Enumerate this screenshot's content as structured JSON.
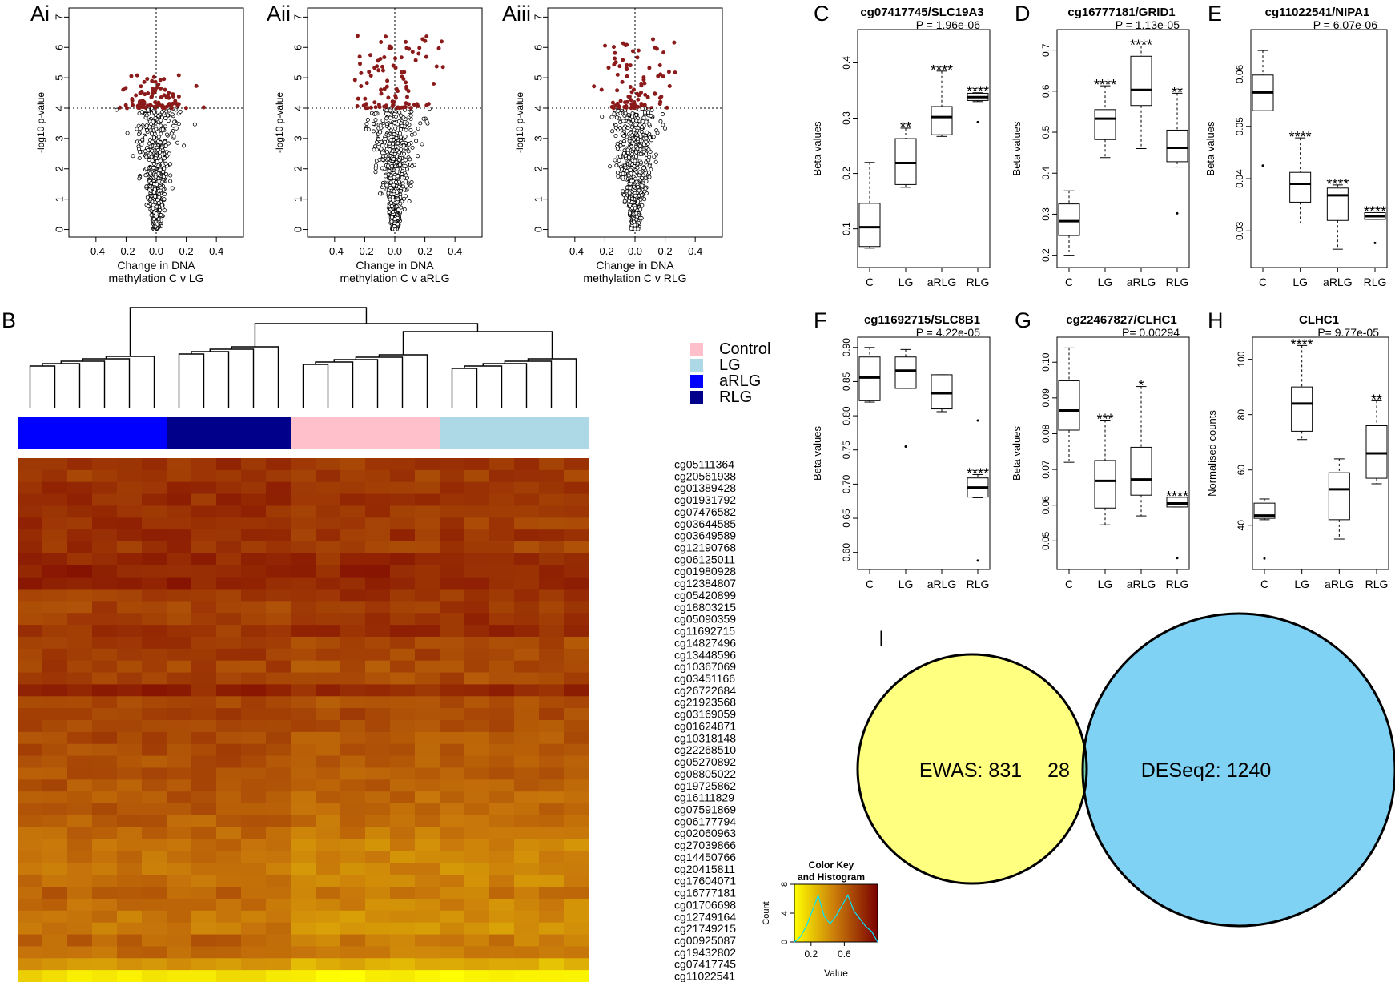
{
  "figure": {
    "panel_letters": {
      "ai": "Ai",
      "aii": "Aii",
      "aiii": "Aiii",
      "b": "B",
      "c": "C",
      "d": "D",
      "e": "E",
      "f": "F",
      "g": "G",
      "h": "H",
      "i": "I"
    }
  },
  "chart_data": [
    {
      "id": "ai",
      "type": "scatter",
      "title": "",
      "xlabel_line1": "Change in DNA",
      "xlabel_line2": "methylation C v LG",
      "ylabel": "-log10 p-value",
      "xlim": [
        -0.58,
        0.58
      ],
      "ylim": [
        -0.25,
        7.3
      ],
      "xticks": [
        -0.4,
        -0.2,
        0.0,
        0.2,
        0.4
      ],
      "xtick_labels": [
        "-0.4",
        "-0.2",
        "0.0",
        "0.2",
        "0.4"
      ],
      "yticks": [
        0,
        1,
        2,
        3,
        4,
        5,
        6,
        7
      ],
      "threshold": 4,
      "max_sig": 5.1,
      "spread": 0.19,
      "n_points": 700,
      "seed": 11,
      "series": [
        {
          "name": "significant",
          "color": "#8b1a1a"
        },
        {
          "name": "not significant",
          "color": "#000000"
        }
      ]
    },
    {
      "id": "aii",
      "type": "scatter",
      "title": "",
      "xlabel_line1": "Change in DNA",
      "xlabel_line2": "methylation C v aRLG",
      "ylabel": "-log10 p-value",
      "xlim": [
        -0.58,
        0.58
      ],
      "ylim": [
        -0.25,
        7.3
      ],
      "xticks": [
        -0.4,
        -0.2,
        0.0,
        0.2,
        0.4
      ],
      "xtick_labels": [
        "-0.4",
        "-0.2",
        "0.0",
        "0.2",
        "0.4"
      ],
      "yticks": [
        0,
        1,
        2,
        3,
        4,
        5,
        6,
        7
      ],
      "threshold": 4,
      "max_sig": 6.4,
      "spread": 0.25,
      "n_points": 750,
      "seed": 23,
      "series": [
        {
          "name": "significant",
          "color": "#8b1a1a"
        },
        {
          "name": "not significant",
          "color": "#000000"
        }
      ]
    },
    {
      "id": "aiii",
      "type": "scatter",
      "title": "",
      "xlabel_line1": "Change in DNA",
      "xlabel_line2": "methylation C v RLG",
      "ylabel": "-log10 p-value",
      "xlim": [
        -0.58,
        0.58
      ],
      "ylim": [
        -0.25,
        7.3
      ],
      "xticks": [
        -0.4,
        -0.2,
        0.0,
        0.2,
        0.4
      ],
      "xtick_labels": [
        "-0.4",
        "-0.2",
        "0.0",
        "0.2",
        "0.4"
      ],
      "yticks": [
        0,
        1,
        2,
        3,
        4,
        5,
        6,
        7
      ],
      "threshold": 4,
      "max_sig": 6.3,
      "spread": 0.24,
      "n_points": 730,
      "seed": 37,
      "series": [
        {
          "name": "significant",
          "color": "#8b1a1a"
        },
        {
          "name": "not significant",
          "color": "#000000"
        }
      ]
    },
    {
      "id": "c",
      "type": "box",
      "title": "cg07417745/SLC19A3",
      "pvalue": "P =  1.96e-06",
      "ylabel": "Beta values",
      "categories": [
        "C",
        "LG",
        "aRLG",
        "RLG"
      ],
      "ylim": [
        0.03,
        0.46
      ],
      "yticks": [
        0.1,
        0.2,
        0.3,
        0.4
      ],
      "ytick_labels": [
        "0.1",
        "0.2",
        "0.3",
        "0.4"
      ],
      "boxes": [
        {
          "min": 0.065,
          "q1": 0.068,
          "median": 0.103,
          "q3": 0.146,
          "max": 0.22,
          "outliers": [],
          "sig": ""
        },
        {
          "min": 0.175,
          "q1": 0.18,
          "median": 0.219,
          "q3": 0.263,
          "max": 0.282,
          "outliers": [],
          "sig": "**"
        },
        {
          "min": 0.267,
          "q1": 0.27,
          "median": 0.302,
          "q3": 0.321,
          "max": 0.385,
          "outliers": [],
          "sig": "****"
        },
        {
          "min": 0.33,
          "q1": 0.332,
          "median": 0.338,
          "q3": 0.345,
          "max": 0.346,
          "outliers": [
            0.293
          ],
          "sig": "****"
        }
      ]
    },
    {
      "id": "d",
      "type": "box",
      "title": "cg16777181/GRID1",
      "pvalue": "P =  1.13e-05",
      "ylabel": "Beta values",
      "categories": [
        "C",
        "LG",
        "aRLG",
        "RLG"
      ],
      "ylim": [
        0.17,
        0.75
      ],
      "yticks": [
        0.2,
        0.3,
        0.4,
        0.5,
        0.6,
        0.7
      ],
      "ytick_labels": [
        "0.2",
        "0.3",
        "0.4",
        "0.5",
        "0.6",
        "0.7"
      ],
      "boxes": [
        {
          "min": 0.2,
          "q1": 0.248,
          "median": 0.283,
          "q3": 0.325,
          "max": 0.357,
          "outliers": [],
          "sig": ""
        },
        {
          "min": 0.438,
          "q1": 0.482,
          "median": 0.533,
          "q3": 0.555,
          "max": 0.613,
          "outliers": [],
          "sig": "****"
        },
        {
          "min": 0.46,
          "q1": 0.565,
          "median": 0.603,
          "q3": 0.685,
          "max": 0.71,
          "outliers": [],
          "sig": "****"
        },
        {
          "min": 0.415,
          "q1": 0.428,
          "median": 0.462,
          "q3": 0.505,
          "max": 0.595,
          "outliers": [
            0.302
          ],
          "sig": "**"
        }
      ]
    },
    {
      "id": "e",
      "type": "box",
      "title": "cg11022541/NIPA1",
      "pvalue": "P =  6.07e-06",
      "ylabel": "Beta values",
      "categories": [
        "C",
        "LG",
        "aRLG",
        "RLG"
      ],
      "ylim": [
        0.023,
        0.0685
      ],
      "yticks": [
        0.03,
        0.04,
        0.05,
        0.06
      ],
      "ytick_labels": [
        "0.03",
        "0.04",
        "0.05",
        "0.06"
      ],
      "boxes": [
        {
          "min": 0.053,
          "q1": 0.053,
          "median": 0.0565,
          "q3": 0.0598,
          "max": 0.0645,
          "outliers": [
            0.0425
          ],
          "sig": ""
        },
        {
          "min": 0.0315,
          "q1": 0.0355,
          "median": 0.039,
          "q3": 0.0412,
          "max": 0.0478,
          "outliers": [],
          "sig": "****"
        },
        {
          "min": 0.0265,
          "q1": 0.032,
          "median": 0.0368,
          "q3": 0.0382,
          "max": 0.0388,
          "outliers": [],
          "sig": "****"
        },
        {
          "min": 0.0322,
          "q1": 0.0322,
          "median": 0.0328,
          "q3": 0.0335,
          "max": 0.0335,
          "outliers": [
            0.0277
          ],
          "sig": "****"
        }
      ]
    },
    {
      "id": "f",
      "type": "box",
      "title": "cg11692715/SLC8B1",
      "pvalue": "P =  4.22e-05",
      "ylabel": "Beta values",
      "categories": [
        "C",
        "LG",
        "aRLG",
        "RLG"
      ],
      "ylim": [
        0.575,
        0.915
      ],
      "yticks": [
        0.6,
        0.65,
        0.7,
        0.75,
        0.8,
        0.85,
        0.9
      ],
      "ytick_labels": [
        "0.60",
        "0.65",
        "0.70",
        "0.75",
        "0.80",
        "0.85",
        "0.90"
      ],
      "boxes": [
        {
          "min": 0.82,
          "q1": 0.822,
          "median": 0.856,
          "q3": 0.886,
          "max": 0.9,
          "outliers": [],
          "sig": ""
        },
        {
          "min": 0.84,
          "q1": 0.84,
          "median": 0.866,
          "q3": 0.886,
          "max": 0.897,
          "outliers": [
            0.755
          ],
          "sig": ""
        },
        {
          "min": 0.806,
          "q1": 0.81,
          "median": 0.833,
          "q3": 0.86,
          "max": 0.86,
          "outliers": [],
          "sig": ""
        },
        {
          "min": 0.68,
          "q1": 0.681,
          "median": 0.695,
          "q3": 0.709,
          "max": 0.714,
          "outliers": [
            0.793,
            0.588
          ],
          "sig": "****"
        }
      ]
    },
    {
      "id": "g",
      "type": "box",
      "title": "cg22467827/CLHC1",
      "pvalue": "P=  0.00294",
      "ylabel": "Beta values",
      "categories": [
        "C",
        "LG",
        "aRLG",
        "RLG"
      ],
      "ylim": [
        0.042,
        0.107
      ],
      "yticks": [
        0.05,
        0.06,
        0.07,
        0.08,
        0.09,
        0.1
      ],
      "ytick_labels": [
        "0.05",
        "0.06",
        "0.07",
        "0.08",
        "0.09",
        "0.10"
      ],
      "boxes": [
        {
          "min": 0.072,
          "q1": 0.081,
          "median": 0.0865,
          "q3": 0.0948,
          "max": 0.104,
          "outliers": [],
          "sig": ""
        },
        {
          "min": 0.0545,
          "q1": 0.0592,
          "median": 0.0668,
          "q3": 0.0725,
          "max": 0.0838,
          "outliers": [],
          "sig": "***"
        },
        {
          "min": 0.057,
          "q1": 0.0628,
          "median": 0.0672,
          "q3": 0.0762,
          "max": 0.0932,
          "outliers": [],
          "sig": "*"
        },
        {
          "min": 0.0595,
          "q1": 0.0595,
          "median": 0.0605,
          "q3": 0.0622,
          "max": 0.0622,
          "outliers": [
            0.0452
          ],
          "sig": "****"
        }
      ]
    },
    {
      "id": "h",
      "type": "box",
      "title": "CLHC1",
      "pvalue": "P=  9.77e-05",
      "ylabel": "Normalised counts",
      "categories": [
        "C",
        "LG",
        "aRLG",
        "RLG"
      ],
      "ylim": [
        24,
        108
      ],
      "yticks": [
        40,
        60,
        80,
        100
      ],
      "ytick_labels": [
        "40",
        "60",
        "80",
        "100"
      ],
      "boxes": [
        {
          "min": 42,
          "q1": 42.5,
          "median": 43.5,
          "q3": 48,
          "max": 49.5,
          "outliers": [
            28
          ],
          "sig": ""
        },
        {
          "min": 71,
          "q1": 74,
          "median": 84,
          "q3": 90,
          "max": 105,
          "outliers": [],
          "sig": "****"
        },
        {
          "min": 35,
          "q1": 42,
          "median": 53,
          "q3": 59,
          "max": 64,
          "outliers": [],
          "sig": ""
        },
        {
          "min": 55,
          "q1": 57,
          "median": 66,
          "q3": 76,
          "max": 85,
          "outliers": [],
          "sig": "**"
        }
      ]
    },
    {
      "id": "b",
      "type": "heatmap",
      "legend": [
        {
          "label": "Control",
          "color": "#ffc0cb"
        },
        {
          "label": "LG",
          "color": "#add8e6"
        },
        {
          "label": "aRLG",
          "color": "#0000ff"
        },
        {
          "label": "RLG",
          "color": "#00008b"
        }
      ],
      "column_groups": [
        "aRLG",
        "aRLG",
        "aRLG",
        "aRLG",
        "aRLG",
        "aRLG",
        "RLG",
        "RLG",
        "RLG",
        "RLG",
        "RLG",
        "Control",
        "Control",
        "Control",
        "Control",
        "Control",
        "Control",
        "LG",
        "LG",
        "LG",
        "LG",
        "LG",
        "LG"
      ],
      "group_colors": {
        "Control": "#ffc0cb",
        "LG": "#add8e6",
        "aRLG": "#0000ff",
        "RLG": "#00008b"
      },
      "rows": [
        "cg05111364",
        "cg20561938",
        "cg01389428",
        "cg01931792",
        "cg07476582",
        "cg03644585",
        "cg03649589",
        "cg12190768",
        "cg06125011",
        "cg01980928",
        "cg12384807",
        "cg05420899",
        "cg18803215",
        "cg05090359",
        "cg11692715",
        "cg14827496",
        "cg13448596",
        "cg10367069",
        "cg03451166",
        "cg26722684",
        "cg21923568",
        "cg03169059",
        "cg01624871",
        "cg10318148",
        "cg22268510",
        "cg05270892",
        "cg08805022",
        "cg19725862",
        "cg16111829",
        "cg07591869",
        "cg06177794",
        "cg02060963",
        "cg27039866",
        "cg14450766",
        "cg20415811",
        "cg17604071",
        "cg16777181",
        "cg01706698",
        "cg12749164",
        "cg21749215",
        "cg00925087",
        "cg19432802",
        "cg07417745",
        "cg11022541"
      ],
      "row_means": [
        0.78,
        0.76,
        0.79,
        0.8,
        0.78,
        0.77,
        0.8,
        0.76,
        0.83,
        0.86,
        0.85,
        0.76,
        0.75,
        0.77,
        0.8,
        0.73,
        0.73,
        0.7,
        0.71,
        0.84,
        0.68,
        0.72,
        0.69,
        0.67,
        0.66,
        0.64,
        0.63,
        0.62,
        0.6,
        0.6,
        0.57,
        0.54,
        0.5,
        0.5,
        0.48,
        0.5,
        0.55,
        0.5,
        0.47,
        0.45,
        0.55,
        0.5,
        0.33,
        0.08
      ],
      "row_shift": [
        0.04,
        0.03,
        0.02,
        0.02,
        0.03,
        0.05,
        0.03,
        0.06,
        0.03,
        0.02,
        0.02,
        -0.04,
        -0.05,
        -0.04,
        -0.06,
        0.07,
        0.05,
        0.05,
        0.05,
        0.03,
        0.05,
        0.04,
        0.05,
        0.06,
        0.06,
        0.07,
        0.05,
        0.06,
        0.06,
        0.06,
        0.07,
        0.06,
        0.08,
        0.09,
        0.08,
        0.1,
        0.09,
        0.08,
        0.09,
        0.09,
        0.1,
        0.09,
        0.11,
        0.06
      ],
      "key": {
        "title_line1": "Color Key",
        "title_line2": "and Histogram",
        "xlabel": "Value",
        "ylabel": "Count",
        "xticks": [
          0.2,
          0.6
        ],
        "xtick_labels": [
          "0.2",
          "0.6"
        ],
        "yticks": [
          0,
          4,
          8
        ],
        "ytick_labels": [
          "0",
          "4",
          "8"
        ],
        "vmin": 0.0,
        "vmax": 1.0,
        "colors": [
          "#ffff00",
          "#c8780a",
          "#7a0000"
        ]
      }
    },
    {
      "id": "i",
      "type": "venn",
      "sets": [
        {
          "label": "EWAS: 831",
          "color": "#ffff80"
        },
        {
          "label": "DESeq2: 1240",
          "color": "#7fd2f4"
        }
      ],
      "overlap_label": "28",
      "overlap_color": "#7dd3b0"
    }
  ]
}
